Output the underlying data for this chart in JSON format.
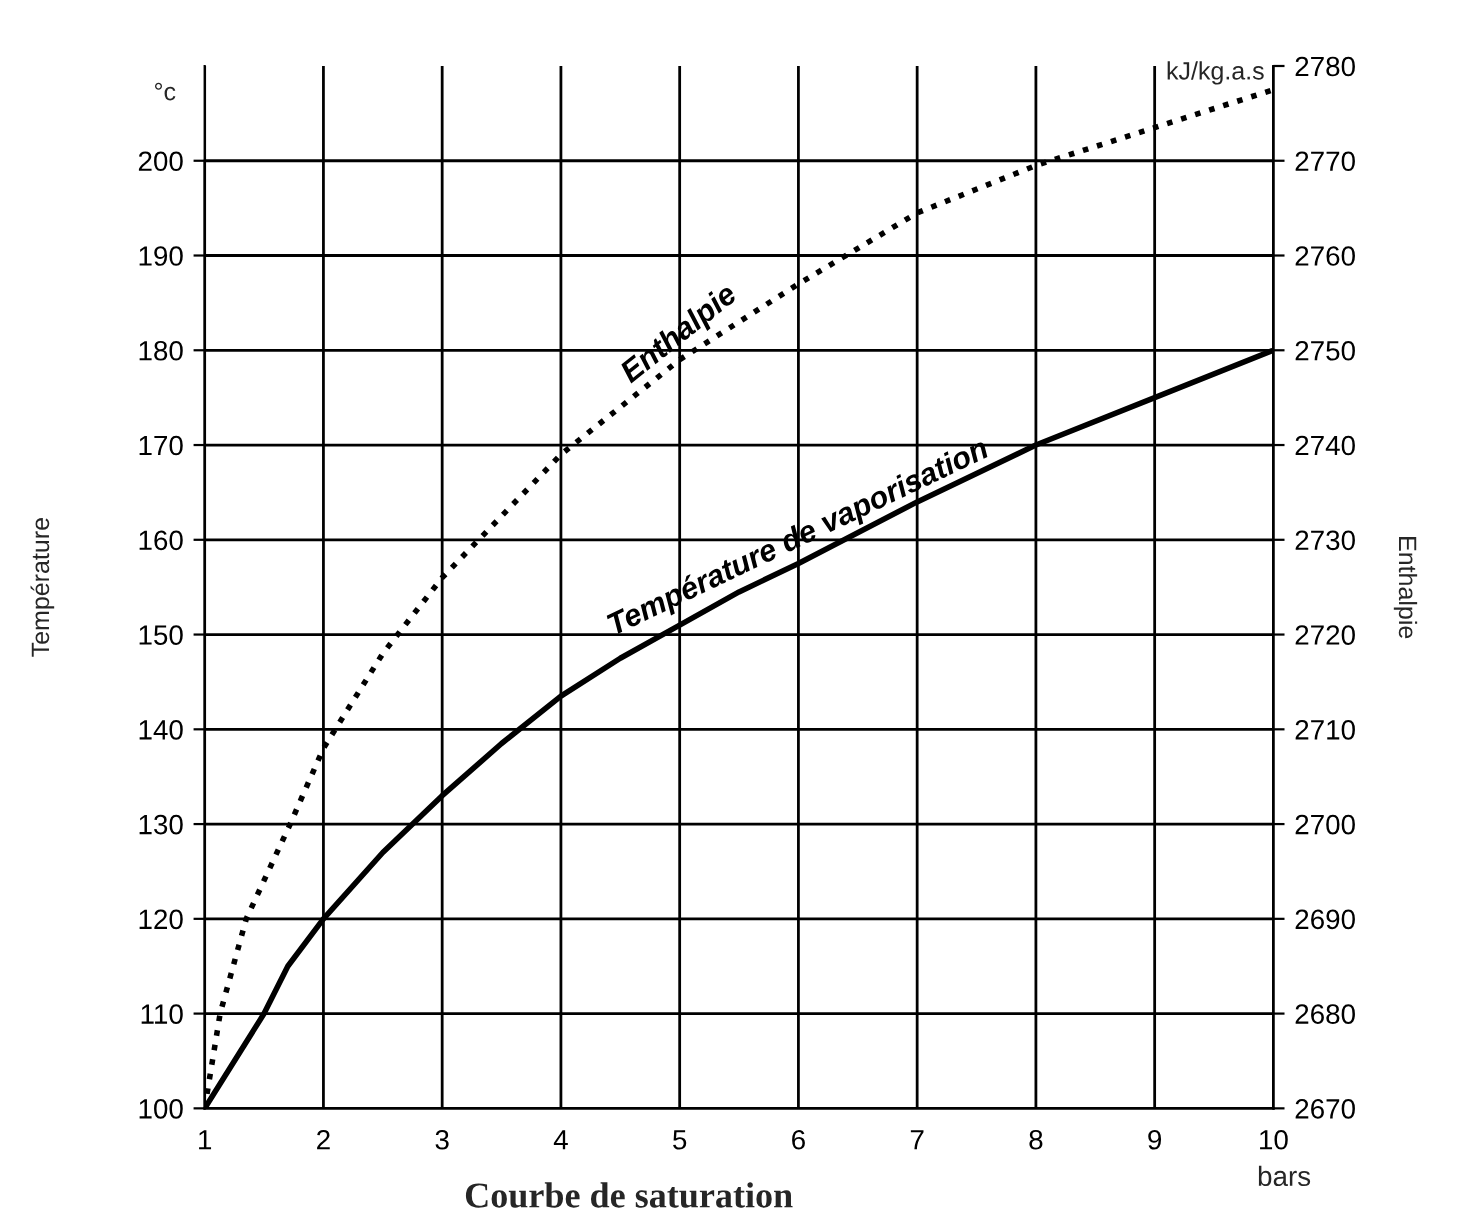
{
  "chart_data": {
    "type": "line",
    "title": "Courbe de saturation",
    "xlabel": "bars",
    "ylabel": "Température",
    "y2label": "Enthalpie",
    "annotations": [
      "°c",
      "kJ/kg.a.s"
    ],
    "xlim": [
      1,
      10
    ],
    "xticks": [
      1,
      2,
      3,
      4,
      5,
      6,
      7,
      8,
      9,
      10
    ],
    "ylim": [
      100,
      210
    ],
    "yticks": [
      100,
      110,
      120,
      130,
      140,
      150,
      160,
      170,
      180,
      190,
      200
    ],
    "y2lim": [
      2670,
      2780
    ],
    "y2ticks": [
      2670,
      2680,
      2690,
      2700,
      2710,
      2720,
      2730,
      2740,
      2750,
      2760,
      2770,
      2780
    ],
    "grid": true,
    "legend": false,
    "marker": "none",
    "series": [
      {
        "name": "Température de vaporisation",
        "color": "#000000",
        "line_style": "solid",
        "x": [
          1,
          1.25,
          1.5,
          1.7,
          2,
          2.5,
          3,
          3.5,
          4,
          4.5,
          5,
          5.5,
          6,
          7,
          8,
          9,
          10
        ],
        "values": [
          100,
          105,
          110,
          115,
          120,
          127,
          133,
          138.5,
          143.5,
          147.5,
          151,
          154.5,
          157.5,
          164,
          170,
          175,
          180
        ]
      },
      {
        "name": "Enthalpie",
        "color": "#000000",
        "line_style": "dotted",
        "axis": "y2",
        "x": [
          1,
          1.13,
          1.35,
          1.72,
          2,
          2.5,
          3,
          4,
          5,
          6,
          7,
          8,
          9,
          10
        ],
        "values": [
          2670,
          2680,
          2690,
          2700,
          2708,
          2718,
          2726,
          2739,
          2749,
          2757,
          2764.5,
          2769.5,
          2773.5,
          2777.5
        ]
      }
    ]
  }
}
